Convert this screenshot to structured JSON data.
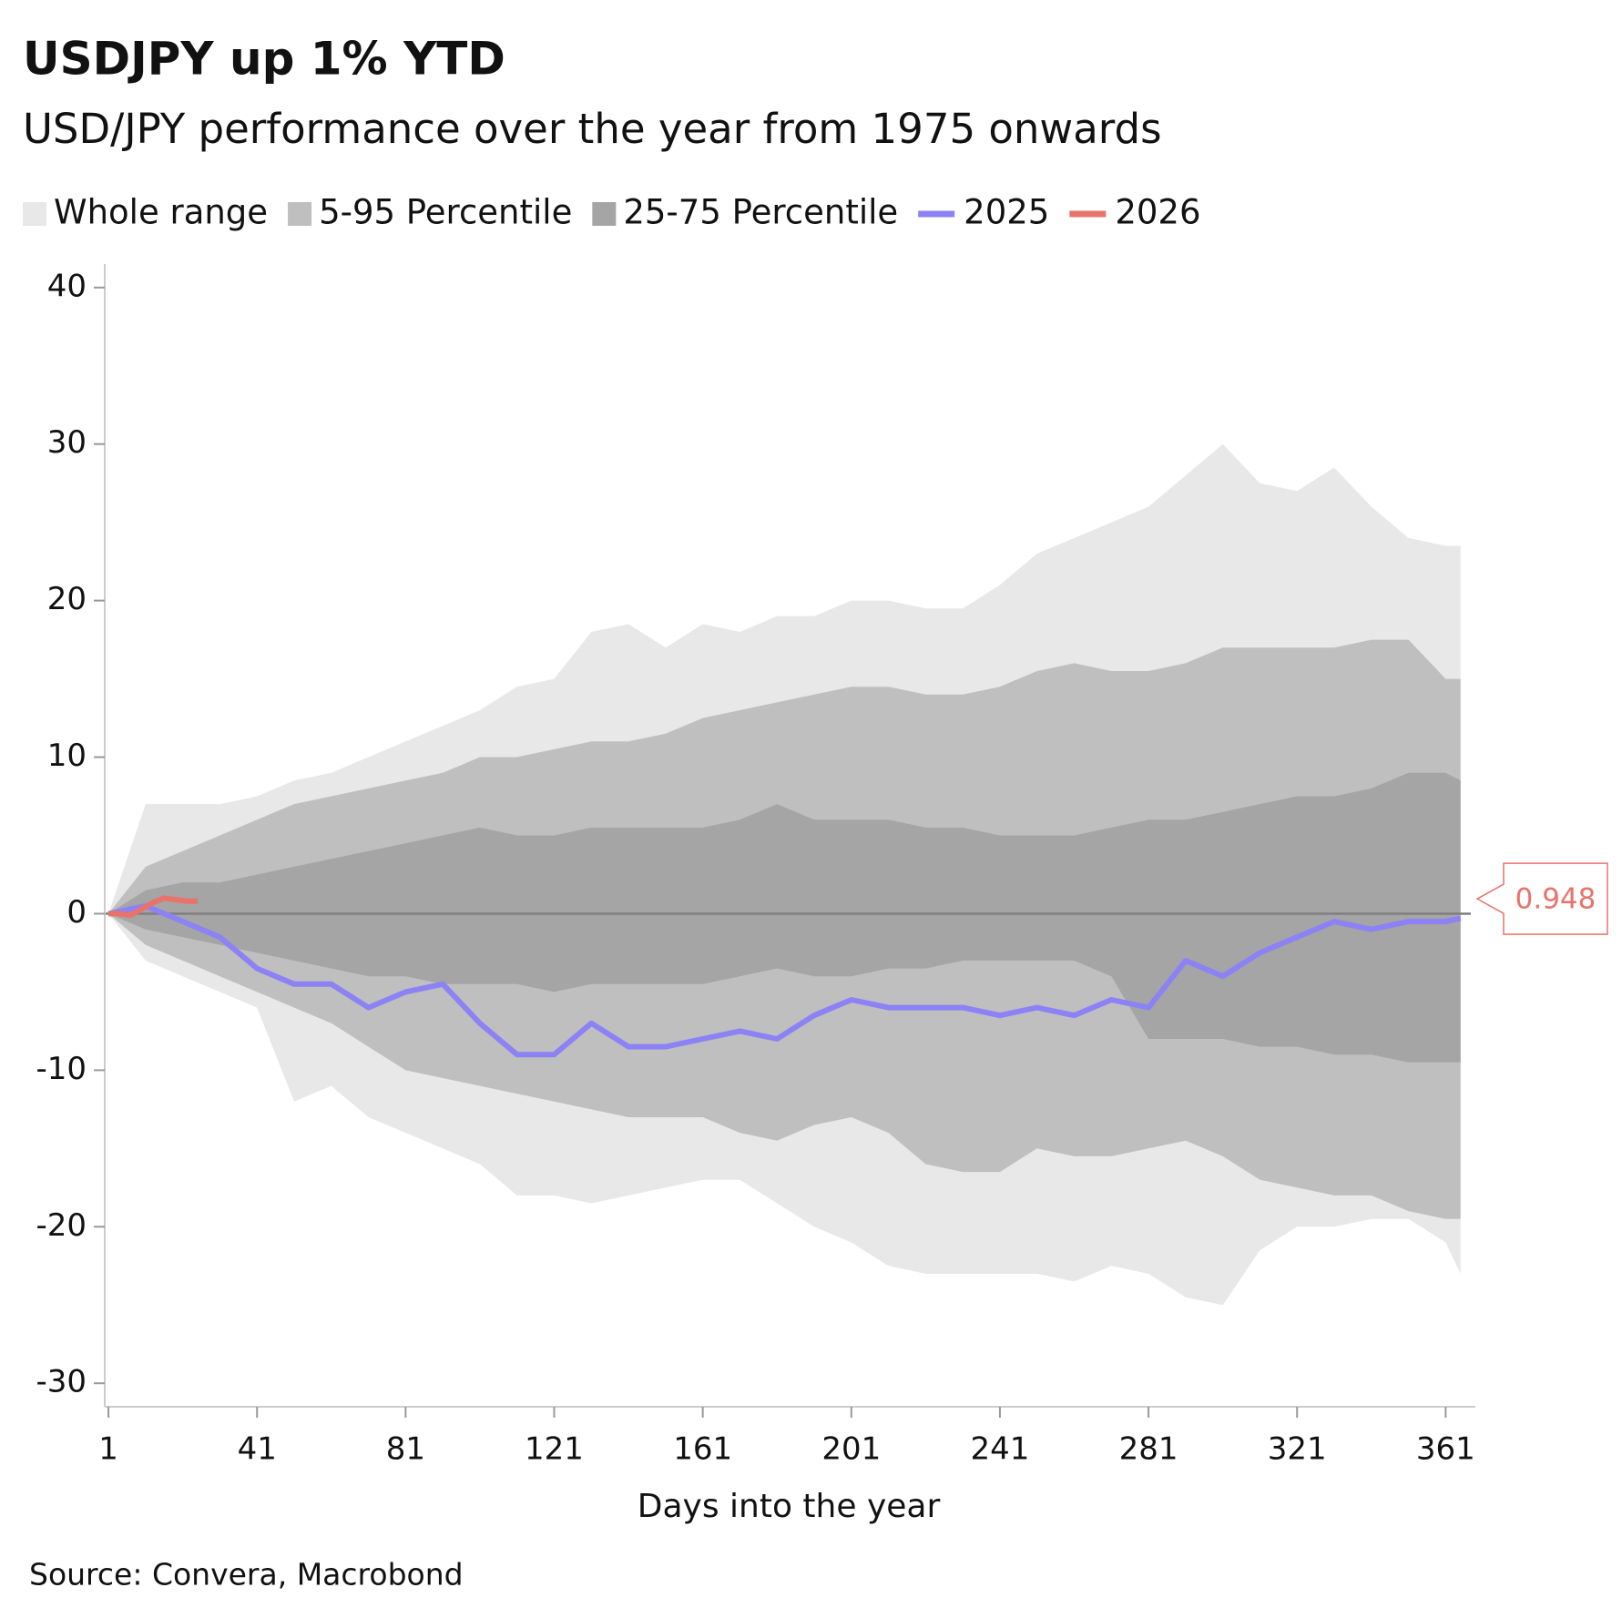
{
  "chart_data": {
    "type": "band-line",
    "title": "USDJPY up 1% YTD",
    "subtitle": "USD/JPY performance over the year from 1975 onwards",
    "x_label": "Days into the year",
    "source": "Source: Convera, Macrobond",
    "x": [
      1,
      11,
      21,
      31,
      41,
      51,
      61,
      71,
      81,
      91,
      101,
      111,
      121,
      131,
      141,
      151,
      161,
      171,
      181,
      191,
      201,
      211,
      221,
      231,
      241,
      251,
      261,
      271,
      281,
      291,
      301,
      311,
      321,
      331,
      341,
      351,
      361,
      365
    ],
    "series": [
      {
        "name": "Whole range",
        "kind": "band",
        "color": "#e8e8e8",
        "high": [
          0,
          7,
          7,
          7,
          7.5,
          8.5,
          9,
          10,
          11,
          12,
          13,
          14.5,
          15,
          18,
          18.5,
          17,
          18.5,
          18,
          19,
          19,
          20,
          20,
          19.5,
          19.5,
          21,
          23,
          24,
          25,
          26,
          28,
          30,
          27.5,
          27,
          28.5,
          26,
          24,
          23.5,
          23.5
        ],
        "low": [
          0,
          -3,
          -4,
          -5,
          -6,
          -12,
          -11,
          -13,
          -14,
          -15,
          -16,
          -18,
          -18,
          -18.5,
          -18,
          -17.5,
          -17,
          -17,
          -18.5,
          -20,
          -21,
          -22.5,
          -23,
          -23,
          -23,
          -23,
          -23.5,
          -22.5,
          -23,
          -24.5,
          -25,
          -21.5,
          -20,
          -20,
          -19.5,
          -19.5,
          -21,
          -23
        ]
      },
      {
        "name": "5-95 Percentile",
        "kind": "band",
        "color": "#bfbfbf",
        "high": [
          0,
          3,
          4,
          5,
          6,
          7,
          7.5,
          8,
          8.5,
          9,
          10,
          10,
          10.5,
          11,
          11,
          11.5,
          12.5,
          13,
          13.5,
          14,
          14.5,
          14.5,
          14,
          14,
          14.5,
          15.5,
          16,
          15.5,
          15.5,
          16,
          17,
          17,
          17,
          17,
          17.5,
          17.5,
          15,
          15
        ],
        "low": [
          0,
          -2,
          -3,
          -4,
          -5,
          -6,
          -7,
          -8.5,
          -10,
          -10.5,
          -11,
          -11.5,
          -12,
          -12.5,
          -13,
          -13,
          -13,
          -14,
          -14.5,
          -13.5,
          -13,
          -14,
          -16,
          -16.5,
          -16.5,
          -15,
          -15.5,
          -15.5,
          -15,
          -14.5,
          -15.5,
          -17,
          -17.5,
          -18,
          -18,
          -19,
          -19.5,
          -19.5
        ]
      },
      {
        "name": "25-75 Percentile",
        "kind": "band",
        "color": "#a5a5a5",
        "high": [
          0,
          1.5,
          2,
          2,
          2.5,
          3,
          3.5,
          4,
          4.5,
          5,
          5.5,
          5,
          5,
          5.5,
          5.5,
          5.5,
          5.5,
          6,
          7,
          6,
          6,
          6,
          5.5,
          5.5,
          5,
          5,
          5,
          5.5,
          6,
          6,
          6.5,
          7,
          7.5,
          7.5,
          8,
          9,
          9,
          8.5
        ],
        "low": [
          0,
          -1,
          -1.5,
          -2,
          -2.5,
          -3,
          -3.5,
          -4,
          -4,
          -4.5,
          -4.5,
          -4.5,
          -5,
          -4.5,
          -4.5,
          -4.5,
          -4.5,
          -4,
          -3.5,
          -4,
          -4,
          -3.5,
          -3.5,
          -3,
          -3,
          -3,
          -3,
          -4,
          -8,
          -8,
          -8,
          -8.5,
          -8.5,
          -9,
          -9,
          -9.5,
          -9.5,
          -9.5
        ]
      },
      {
        "name": "2025",
        "kind": "line",
        "color": "#8c82f5",
        "values": [
          0,
          0.5,
          -0.5,
          -1.5,
          -3.5,
          -4.5,
          -4.5,
          -6,
          -5,
          -4.5,
          -7,
          -9,
          -9,
          -7,
          -8.5,
          -8.5,
          -8,
          -7.5,
          -8,
          -6.5,
          -5.5,
          -6,
          -6,
          -6,
          -6.5,
          -6,
          -6.5,
          -5.5,
          -6,
          -3,
          -4,
          -2.5,
          -1.5,
          -0.5,
          -1,
          -0.5,
          -0.5,
          -0.3
        ]
      },
      {
        "name": "2026",
        "kind": "line",
        "color": "#e8736b",
        "x": [
          1,
          4,
          7,
          10,
          13,
          16,
          19,
          22,
          25
        ],
        "values": [
          0,
          0,
          -0.1,
          0.3,
          0.7,
          1.0,
          0.9,
          0.8,
          0.8
        ]
      }
    ],
    "annotation": 0.948,
    "reference_line": 0,
    "xlim": [
      0,
      369
    ],
    "ylim": [
      -31.5,
      41.5
    ],
    "xticks": [
      1,
      41,
      81,
      121,
      161,
      201,
      241,
      281,
      321,
      361
    ],
    "yticks": [
      -30,
      -20,
      -10,
      0,
      10,
      20,
      30,
      40
    ]
  }
}
